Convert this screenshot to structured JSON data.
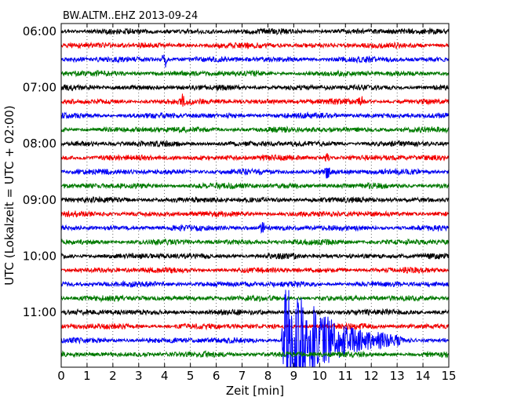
{
  "chart_data": {
    "type": "line",
    "title": "BW.ALTM..EHZ 2013-09-24",
    "xlabel": "Zeit  [min]",
    "ylabel": "UTC (Lokalzeit = UTC + 02:00)",
    "xlim": [
      0,
      15
    ],
    "x_ticks": [
      "0",
      "1",
      "2",
      "3",
      "4",
      "5",
      "6",
      "7",
      "8",
      "9",
      "10",
      "11",
      "12",
      "13",
      "14",
      "15"
    ],
    "y_ticks": [
      "06:00",
      "07:00",
      "08:00",
      "09:00",
      "10:00",
      "11:00"
    ],
    "grid": true,
    "trace_count": 24,
    "trace_interval_min": 15,
    "first_trace_start": "06:00",
    "trace_colors": [
      "#000000",
      "#ff0000",
      "#0000ff",
      "#008000"
    ],
    "events": [
      {
        "trace": 2,
        "minute": 4.0,
        "amplitude": 1.6
      },
      {
        "trace": 5,
        "minute": 4.7,
        "amplitude": 1.2
      },
      {
        "trace": 5,
        "minute": 11.6,
        "amplitude": 1.1
      },
      {
        "trace": 9,
        "minute": 10.3,
        "amplitude": 1.0
      },
      {
        "trace": 10,
        "minute": 10.3,
        "amplitude": 1.0
      },
      {
        "trace": 14,
        "minute": 7.8,
        "amplitude": 0.9
      },
      {
        "trace": 22,
        "minute": 8.7,
        "amplitude": 8.0,
        "duration": 4.5
      }
    ]
  }
}
